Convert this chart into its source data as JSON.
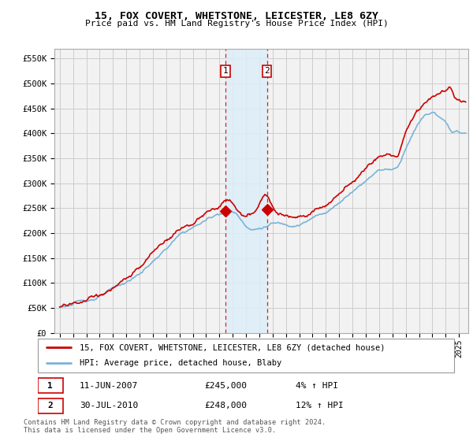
{
  "title": "15, FOX COVERT, WHETSTONE, LEICESTER, LE8 6ZY",
  "subtitle": "Price paid vs. HM Land Registry's House Price Index (HPI)",
  "ylabel_ticks": [
    "£0",
    "£50K",
    "£100K",
    "£150K",
    "£200K",
    "£250K",
    "£300K",
    "£350K",
    "£400K",
    "£450K",
    "£500K",
    "£550K"
  ],
  "ytick_values": [
    0,
    50000,
    100000,
    150000,
    200000,
    250000,
    300000,
    350000,
    400000,
    450000,
    500000,
    550000
  ],
  "ylim": [
    0,
    570000
  ],
  "hpi_color": "#7ab3d8",
  "price_color": "#cc0000",
  "bg_color": "#ffffff",
  "grid_color": "#cccccc",
  "plot_bg": "#f2f2f2",
  "legend_label_price": "15, FOX COVERT, WHETSTONE, LEICESTER, LE8 6ZY (detached house)",
  "legend_label_hpi": "HPI: Average price, detached house, Blaby",
  "transaction1_date": "11-JUN-2007",
  "transaction1_price": "£245,000",
  "transaction1_hpi": "4% ↑ HPI",
  "transaction2_date": "30-JUL-2010",
  "transaction2_price": "£248,000",
  "transaction2_hpi": "12% ↑ HPI",
  "footer": "Contains HM Land Registry data © Crown copyright and database right 2024.\nThis data is licensed under the Open Government Licence v3.0.",
  "t1_x": 2007.45,
  "t1_y": 245000,
  "t2_x": 2010.58,
  "t2_y": 248000,
  "shade_x1": 2007.45,
  "shade_x2": 2010.58,
  "xlim_left": 1994.6,
  "xlim_right": 2025.7
}
